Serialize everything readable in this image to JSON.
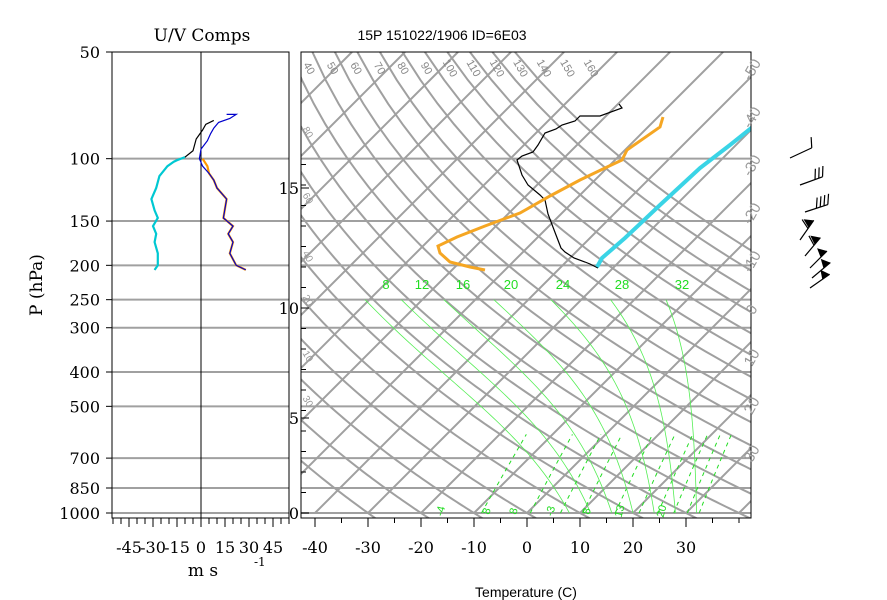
{
  "header": {
    "left_title": "U/V Comps",
    "right_title": "15P 151022/1906 ID=6E03"
  },
  "left_panel": {
    "ylabel": "P (hPa)",
    "xlabel": "m s",
    "xlabel_exp": "-1",
    "pressure_ticks": [
      50,
      100,
      150,
      200,
      250,
      300,
      400,
      500,
      700,
      850,
      1000
    ],
    "speed_ticks": [
      -45,
      -30,
      -15,
      0,
      15,
      30,
      45
    ]
  },
  "right_panel": {
    "xlabel": "Temperature (C)",
    "temp_ticks": [
      -40,
      -30,
      -20,
      -10,
      0,
      10,
      20,
      30
    ],
    "height_ticks": [
      0,
      5,
      10,
      15
    ],
    "theta_labels": [
      40,
      50,
      60,
      70,
      80,
      90,
      100,
      110,
      120,
      130,
      140,
      150,
      160
    ],
    "mixing_ratio_labels": [
      8,
      12,
      16,
      20,
      24,
      28,
      32
    ],
    "wetbulb_bottom_labels": [
      "-4",
      "8",
      "8",
      "-3",
      "8",
      "13",
      "20"
    ],
    "right_edge_labels": [
      "-50",
      "-40",
      "-30",
      "-20",
      "-10",
      "0",
      "10",
      "20",
      "30"
    ],
    "left_edge_labels": [
      "80",
      "60",
      "40",
      "20",
      "10",
      "30"
    ]
  },
  "chart_data": [
    {
      "type": "line",
      "title": "U/V Comps",
      "xlabel": "m s -1",
      "ylabel": "P (hPa)",
      "xlim": [
        -55,
        55
      ],
      "ylim": [
        1000,
        50
      ],
      "y_scale": "log",
      "grid": true,
      "series": [
        {
          "color": "#000000",
          "x": [
            -29,
            -27,
            -27,
            -29,
            -28,
            -30,
            -27,
            -29,
            -31,
            -28,
            -26,
            -21,
            -17,
            -15,
            -10,
            -5,
            -3,
            1,
            3,
            8
          ],
          "y": [
            206,
            200,
            185,
            172,
            163,
            155,
            147,
            140,
            130,
            121,
            112,
            105,
            102,
            101,
            99,
            95,
            88,
            83,
            80,
            78
          ]
        },
        {
          "color": "#00c8d2",
          "x": [
            -29,
            -27,
            -27,
            -29,
            -28,
            -30,
            -27,
            -29,
            -31,
            -28,
            -26,
            -21,
            -17,
            -15,
            -10
          ],
          "y": [
            206,
            200,
            185,
            172,
            163,
            155,
            147,
            140,
            130,
            121,
            112,
            105,
            102,
            101,
            99
          ]
        },
        {
          "color": "#ff9900",
          "x": [
            28,
            22,
            18,
            20,
            17,
            20,
            14,
            16,
            10,
            8,
            5,
            4,
            1
          ],
          "y": [
            206,
            200,
            185,
            172,
            163,
            155,
            147,
            130,
            121,
            115,
            110,
            105,
            100
          ]
        },
        {
          "color": "#0000cc",
          "x": [
            28,
            22,
            18,
            20,
            17,
            20,
            14,
            16,
            10,
            8,
            5,
            1,
            -1,
            0,
            4,
            6,
            8,
            11,
            18,
            22,
            16
          ],
          "y": [
            206,
            200,
            185,
            172,
            163,
            155,
            147,
            130,
            121,
            115,
            110,
            105,
            100,
            94,
            89,
            85,
            82,
            79,
            77,
            75,
            75
          ]
        }
      ]
    },
    {
      "type": "line",
      "title": "15P 151022/1906 ID=6E03",
      "xlabel": "Temperature (C)",
      "xlim": [
        -45,
        40
      ],
      "ylim": [
        1000,
        50
      ],
      "y_scale": "log",
      "grid": true,
      "series": [
        {
          "color": "#000000",
          "x": [
            -7,
            -8,
            -9,
            -10,
            -12,
            -11,
            -13,
            -13,
            -12,
            -14,
            -18,
            -20,
            -22,
            -21,
            -24,
            -26,
            -24
          ],
          "y": [
            206,
            204,
            198,
            190,
            180,
            165,
            150,
            135,
            120,
            110,
            100,
            98,
            90,
            86,
            80,
            77,
            75
          ]
        },
        {
          "color": "#f5a623",
          "x": [
            -7,
            -12,
            -15,
            -16,
            -15,
            -7,
            5,
            10,
            13,
            14,
            12,
            11
          ],
          "y": [
            206,
            204,
            200,
            193,
            183,
            165,
            138,
            115,
            100,
            92,
            84,
            80
          ]
        },
        {
          "color": "#3ad4e6",
          "x": [
            15,
            12,
            10,
            8,
            6,
            4,
            2,
            0,
            -4,
            -8,
            -12,
            -16,
            -20,
            -24
          ],
          "y": [
            206,
            200,
            190,
            180,
            170,
            160,
            150,
            140,
            130,
            120,
            110,
            100,
            95,
            92
          ]
        }
      ]
    }
  ]
}
